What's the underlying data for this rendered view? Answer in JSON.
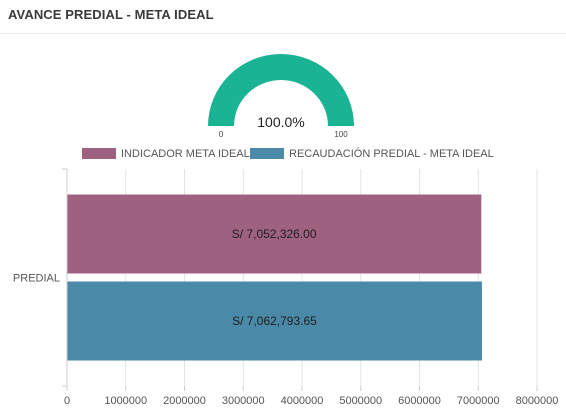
{
  "panel": {
    "title": "AVANCE PREDIAL - META IDEAL"
  },
  "gauge": {
    "value": 100.0,
    "value_label": "100.0%",
    "min_label": "0",
    "max_label": "100",
    "color": "#1ab394"
  },
  "chart_data": {
    "type": "bar",
    "orientation": "horizontal",
    "categories": [
      "PREDIAL"
    ],
    "series": [
      {
        "name": "INDICADOR META IDEAL",
        "values": [
          7052326.0
        ],
        "data_labels": [
          "S/ 7,052,326.00"
        ],
        "color": "#9e6280"
      },
      {
        "name": "RECAUDACIÓN PREDIAL - META IDEAL",
        "values": [
          7062793.65
        ],
        "data_labels": [
          "S/ 7,062,793.65"
        ],
        "color": "#4a89a7"
      }
    ],
    "xlim": [
      0,
      8000000
    ],
    "x_ticks": [
      0,
      1000000,
      2000000,
      3000000,
      4000000,
      5000000,
      6000000,
      7000000,
      8000000
    ],
    "x_tick_labels": [
      "0",
      "1000000",
      "2000000",
      "3000000",
      "4000000",
      "5000000",
      "6000000",
      "7000000",
      "8000000"
    ],
    "grid": true,
    "legend_position": "top"
  }
}
